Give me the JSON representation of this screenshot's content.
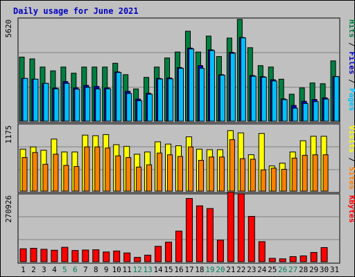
{
  "title": "Daily usage for June 2021",
  "colors": {
    "hits": "#008040",
    "files": "#00c0ff",
    "pages": "#00c0ff",
    "visits": "#ffff00",
    "sites": "#ff8000",
    "kbytes": "#ff0000",
    "weekday": "#000000",
    "weekend": "#00805c"
  },
  "chart_data": [
    {
      "type": "bar",
      "panel": "hits-files-pages",
      "y_max_label": "5620",
      "ylim": [
        0,
        5620
      ],
      "right_axis_labels": [
        {
          "text": "Pages",
          "color": "#00c0ff"
        },
        {
          "text": " / ",
          "color": "#000000"
        },
        {
          "text": "Files",
          "color": "#0000c0"
        },
        {
          "text": " / ",
          "color": "#000000"
        },
        {
          "text": "Hits",
          "color": "#008040"
        }
      ],
      "categories": [
        "1",
        "2",
        "3",
        "4",
        "5",
        "6",
        "7",
        "8",
        "9",
        "10",
        "11",
        "12",
        "13",
        "14",
        "15",
        "16",
        "17",
        "18",
        "19",
        "20",
        "21",
        "22",
        "23",
        "24",
        "25",
        "26",
        "27",
        "28",
        "29",
        "30",
        "31"
      ],
      "series": [
        {
          "key": "hits",
          "values": [
            3540,
            3440,
            2990,
            2780,
            2990,
            2650,
            2990,
            2990,
            2990,
            3200,
            2570,
            1780,
            2420,
            2990,
            3490,
            3820,
            4970,
            3820,
            4700,
            3570,
            4590,
            5620,
            4060,
            3070,
            2990,
            2320,
            1490,
            1840,
            2110,
            2070,
            3330
          ]
        },
        {
          "key": "files",
          "values": [
            2360,
            2320,
            2090,
            1830,
            2190,
            1840,
            1980,
            1920,
            1840,
            2720,
            1650,
            1220,
            1540,
            2360,
            2390,
            2960,
            4040,
            3070,
            3940,
            2570,
            3800,
            4620,
            2520,
            2460,
            2290,
            1230,
            870,
            1100,
            1200,
            1290,
            2470
          ]
        },
        {
          "key": "pages",
          "values": [
            2360,
            2320,
            2090,
            1790,
            2090,
            1770,
            1870,
            1780,
            1790,
            2690,
            1530,
            1130,
            1490,
            2330,
            2340,
            2920,
            3990,
            2920,
            3900,
            2540,
            3750,
            4600,
            2480,
            2430,
            2220,
            1190,
            720,
            980,
            1080,
            1220,
            2460
          ]
        }
      ]
    },
    {
      "type": "bar",
      "panel": "visits-sites",
      "y_max_label": "1175",
      "ylim": [
        0,
        1175
      ],
      "right_axis_labels": [
        {
          "text": "Sites",
          "color": "#ff8000"
        },
        {
          "text": " / ",
          "color": "#000000"
        },
        {
          "text": "Visits",
          "color": "#ffff00"
        }
      ],
      "categories": [
        "1",
        "2",
        "3",
        "4",
        "5",
        "6",
        "7",
        "8",
        "9",
        "10",
        "11",
        "12",
        "13",
        "14",
        "15",
        "16",
        "17",
        "18",
        "19",
        "20",
        "21",
        "22",
        "23",
        "24",
        "25",
        "26",
        "27",
        "28",
        "29",
        "30",
        "31"
      ],
      "series": [
        {
          "key": "visits",
          "values": [
            750,
            790,
            730,
            930,
            700,
            700,
            1000,
            990,
            1010,
            830,
            800,
            660,
            700,
            880,
            840,
            810,
            970,
            750,
            740,
            740,
            1080,
            1040,
            650,
            1030,
            450,
            500,
            700,
            900,
            980,
            980,
            0
          ]
        },
        {
          "key": "sites",
          "values": [
            600,
            690,
            480,
            660,
            460,
            440,
            790,
            790,
            770,
            630,
            600,
            430,
            470,
            680,
            650,
            620,
            790,
            550,
            610,
            610,
            920,
            580,
            570,
            380,
            410,
            390,
            590,
            640,
            650,
            650,
            0
          ]
        }
      ]
    },
    {
      "type": "bar",
      "panel": "kbytes",
      "y_max_label": "270926",
      "ylim": [
        0,
        270926
      ],
      "right_axis_labels": [
        {
          "text": "KBytes",
          "color": "#ff0000"
        }
      ],
      "categories": [
        "1",
        "2",
        "3",
        "4",
        "5",
        "6",
        "7",
        "8",
        "9",
        "10",
        "11",
        "12",
        "13",
        "14",
        "15",
        "16",
        "17",
        "18",
        "19",
        "20",
        "21",
        "22",
        "23",
        "24",
        "25",
        "26",
        "27",
        "28",
        "29",
        "30",
        "31"
      ],
      "series": [
        {
          "key": "kbytes",
          "values": [
            53000,
            55000,
            51000,
            47000,
            59000,
            46000,
            48000,
            49000,
            40000,
            44000,
            36000,
            18000,
            27000,
            63000,
            80000,
            125000,
            258000,
            228000,
            217000,
            88000,
            283000,
            277000,
            185000,
            82000,
            14000,
            12000,
            21000,
            24000,
            38000,
            58000,
            0
          ]
        }
      ]
    }
  ],
  "x_axis": {
    "labels": [
      "1",
      "2",
      "3",
      "4",
      "5",
      "6",
      "7",
      "8",
      "9",
      "10",
      "11",
      "12",
      "13",
      "14",
      "15",
      "16",
      "17",
      "18",
      "19",
      "20",
      "21",
      "22",
      "23",
      "24",
      "25",
      "26",
      "27",
      "28",
      "29",
      "30",
      "31"
    ],
    "weekend_days": [
      "5",
      "6",
      "12",
      "13",
      "19",
      "20",
      "26",
      "27"
    ]
  }
}
